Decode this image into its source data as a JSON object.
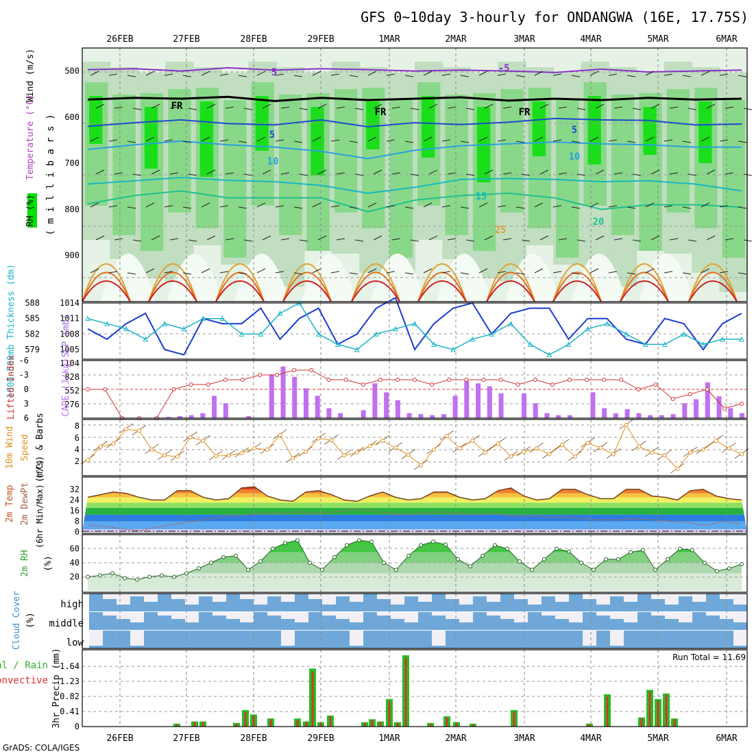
{
  "title": "GFS 0~10day 3-hourly for ONDANGWA (16E, 17.75S)",
  "footer": "GrADS: COLA/IGES",
  "dates": [
    "26FEB",
    "27FEB",
    "28FEB",
    "29FEB",
    "1MAR",
    "2MAR",
    "3MAR",
    "4MAR",
    "5MAR",
    "6MAR"
  ],
  "colors": {
    "rh_green": "#00e000",
    "rh_mid": "#7fd77f",
    "rh_light": "#bcdcbc",
    "slp": "#1a3ccc",
    "thickness": "#18b4c8",
    "lifted": "#d03030",
    "cape": "#c070f0",
    "wind": "#e08c1c",
    "barb": "#8a6a40",
    "cloud_blue": "#6fa8d8",
    "precip_total": "#22c022",
    "precip_conv": "#e03030"
  },
  "panel_labels": {
    "p1_wind": "Wind (m/s)",
    "p1_temp": "Temperature (°C)",
    "p1_rh": "RH (%)",
    "p1_mb": "( m i l l i b a r s )",
    "p2_thick": "1000-500mb Thickness (dm)",
    "p2_slp": "SLP (mb)",
    "p3_li": "Lifted Index",
    "p3_cape": "CAPE (J/kg)",
    "p4_a": "10m Wind",
    "p4_b": "Speed",
    "p4_c": "(m/s) & Barbs",
    "p5_a": "2m Temp",
    "p5_b": "2m DewPt",
    "p5_c": "(6hr Min/Max) (°C)",
    "p6_a": "2m RH",
    "p6_b": "(%)",
    "p7_a": "Cloud Cover",
    "p7_b": "(%)",
    "p8_a": "Total / Rain",
    "p8_b": "Convective",
    "p8_c": "3hr Precip (mm)",
    "run_total": "Run Total = 11.69"
  },
  "contour_labels": [
    "5",
    "-5",
    "FR",
    "FR",
    "FR",
    "5",
    "5",
    "10",
    "10",
    "15",
    "20",
    "25"
  ],
  "chart_data": [
    {
      "type": "area",
      "name": "pressure-level cross section",
      "yticks": [
        500,
        600,
        700,
        800,
        900
      ],
      "ylim": [
        1000,
        450
      ],
      "temp_contours": [
        {
          "label": "-5",
          "level_mb": [
            497,
            495,
            500,
            493,
            498,
            495,
            497,
            500,
            498,
            500,
            503,
            496,
            502,
            500,
            498
          ]
        },
        {
          "label": "FR",
          "level_mb": [
            562,
            558,
            560,
            556,
            565,
            558,
            563,
            560,
            557,
            564,
            560,
            563,
            558,
            562,
            560
          ]
        },
        {
          "label": "5",
          "level_mb": [
            620,
            612,
            606,
            614,
            617,
            606,
            621,
            612,
            616,
            611,
            603,
            606,
            607,
            617,
            615
          ]
        },
        {
          "label": "10",
          "level_mb": [
            670,
            660,
            652,
            660,
            665,
            674,
            690,
            672,
            662,
            658,
            654,
            658,
            660,
            665,
            665
          ]
        },
        {
          "label": "15",
          "level_mb": [
            745,
            738,
            731,
            737,
            740,
            748,
            765,
            752,
            735,
            733,
            735,
            740,
            738,
            745,
            760
          ]
        },
        {
          "label": "20",
          "level_mb": [
            788,
            770,
            760,
            775,
            775,
            775,
            805,
            780,
            770,
            765,
            775,
            800,
            790,
            790,
            795
          ]
        }
      ]
    },
    {
      "type": "line",
      "name": "SLP and thickness",
      "series": [
        {
          "name": "SLP (mb)",
          "yticks": [
            1005,
            1008,
            1011,
            1014
          ],
          "values": [
            1009,
            1007,
            1010,
            1012,
            1005,
            1004,
            1011,
            1010,
            1010,
            1013,
            1007,
            1011,
            1013,
            1006,
            1008,
            1013,
            1015,
            1005,
            1010,
            1013,
            1014,
            1008,
            1012,
            1013,
            1013,
            1007,
            1011,
            1011,
            1007,
            1006,
            1011,
            1010,
            1005,
            1010,
            1012
          ]
        },
        {
          "name": "1000-500mb Thickness (dm)",
          "yticks": [
            579,
            582,
            585,
            588
          ],
          "values": [
            585,
            584,
            583,
            581,
            584,
            583,
            585,
            585,
            582,
            582,
            586,
            588,
            582,
            580,
            579,
            582,
            583,
            584,
            580,
            579,
            581,
            582,
            584,
            580,
            578,
            580,
            583,
            584,
            582,
            580,
            580,
            582,
            580,
            581,
            581
          ]
        }
      ]
    },
    {
      "type": "bar",
      "name": "Lifted Index and CAPE",
      "li_ticks": [
        -6,
        -3,
        0,
        3,
        6
      ],
      "cape_ticks": [
        276,
        552,
        828,
        1104
      ],
      "lifted_index": [
        0,
        0,
        6,
        6,
        6,
        0,
        -1,
        -1,
        -2,
        -2,
        -3,
        -3,
        -4,
        -4,
        -2,
        -2,
        -1,
        -2,
        -2,
        -2,
        -1,
        -2,
        -2,
        -2,
        -2,
        -1,
        -2,
        -1,
        -2,
        -2,
        -2,
        -2,
        0,
        -1,
        2,
        1,
        0,
        4,
        3
      ],
      "cape": [
        0,
        0,
        0,
        0,
        0,
        0,
        20,
        25,
        40,
        60,
        100,
        450,
        300,
        0,
        40,
        0,
        880,
        1040,
        830,
        600,
        450,
        200,
        100,
        0,
        160,
        700,
        520,
        360,
        100,
        80,
        60,
        80,
        450,
        750,
        700,
        640,
        500,
        0,
        500,
        300,
        100,
        60,
        60,
        0,
        520,
        200,
        100,
        180,
        100,
        60,
        60,
        80,
        300,
        380,
        720,
        440,
        200,
        100
      ]
    },
    {
      "type": "line",
      "name": "10m wind speed",
      "yticks": [
        2,
        4,
        6,
        8
      ],
      "values": [
        2.2,
        4.5,
        5.0,
        7.5,
        7.2,
        4.0,
        3.0,
        2.8,
        6.1,
        5.5,
        2.9,
        3.0,
        3.4,
        4.2,
        4.0,
        6.5,
        2.5,
        3.6,
        5.9,
        5.6,
        3.0,
        3.5,
        4.6,
        5.5,
        4.3,
        3.1,
        1.3,
        4.0,
        6.3,
        4.2,
        5.5,
        3.5,
        5.0,
        2.8,
        3.6,
        4.2,
        3.2,
        4.8,
        2.8,
        5.1,
        4.3,
        3.2,
        8.2,
        4.5,
        3.5,
        3.0,
        0.7,
        3.5,
        4.0,
        5.5,
        4.2,
        3.2
      ]
    },
    {
      "type": "area",
      "name": "2m temperature and dewpoint",
      "yticks": [
        0,
        8,
        16,
        24,
        32
      ],
      "temperature": [
        26,
        28,
        30,
        29,
        26,
        24,
        24,
        31,
        31,
        26,
        24,
        25,
        33,
        34,
        27,
        24,
        23,
        30,
        31,
        28,
        24,
        23,
        27,
        30,
        26,
        24,
        25,
        30,
        30,
        26,
        24,
        25,
        31,
        33,
        27,
        24,
        25,
        32,
        32,
        28,
        25,
        25,
        32,
        32,
        27,
        26,
        24,
        31,
        32,
        27,
        25,
        24
      ],
      "dewpoint": [
        5,
        4,
        2,
        1,
        4,
        6,
        8,
        10,
        12,
        13,
        14,
        14,
        15,
        14,
        15,
        17,
        16,
        14,
        13,
        14,
        15,
        14,
        13,
        14,
        12,
        12,
        11,
        11,
        10,
        9,
        9,
        10,
        9,
        8,
        7,
        5,
        8,
        6
      ]
    },
    {
      "type": "area",
      "name": "2m relative humidity",
      "yticks": [
        20,
        40,
        60
      ],
      "values": [
        20,
        22,
        25,
        18,
        16,
        20,
        22,
        20,
        25,
        32,
        40,
        48,
        50,
        30,
        42,
        60,
        68,
        72,
        40,
        30,
        48,
        65,
        72,
        70,
        40,
        30,
        50,
        65,
        70,
        66,
        45,
        35,
        50,
        65,
        60,
        42,
        30,
        45,
        60,
        56,
        40,
        30,
        45,
        45,
        55,
        58,
        30,
        45,
        60,
        58,
        40,
        28,
        32,
        38
      ]
    },
    {
      "type": "heatmap",
      "name": "cloud cover",
      "rows": [
        "high",
        "middle",
        "low"
      ]
    },
    {
      "type": "bar",
      "name": "3hr precip",
      "yticks": [
        0,
        0.41,
        0.82,
        1.23,
        1.64
      ],
      "run_total": 11.69,
      "total": [
        0.08,
        0.14,
        0.14,
        0.1,
        0.45,
        0.33,
        0.22,
        0.22,
        0.14,
        1.58,
        0.12,
        0.3,
        0.12,
        0.2,
        0.14,
        0.75,
        0.12,
        1.94,
        0.1,
        0.28,
        0.12,
        0.08,
        0.45,
        0.08,
        0.88,
        0.25,
        1.0,
        0.75,
        0.9,
        0.22
      ],
      "convective": [
        0.06,
        0.12,
        0.12,
        0.08,
        0.4,
        0.3,
        0.2,
        0.18,
        0.12,
        1.5,
        0.1,
        0.28,
        0.1,
        0.18,
        0.12,
        0.7,
        0.1,
        1.88,
        0.08,
        0.25,
        0.1,
        0.06,
        0.4,
        0.06,
        0.82,
        0.22,
        0.95,
        0.7,
        0.86,
        0.2
      ]
    }
  ]
}
